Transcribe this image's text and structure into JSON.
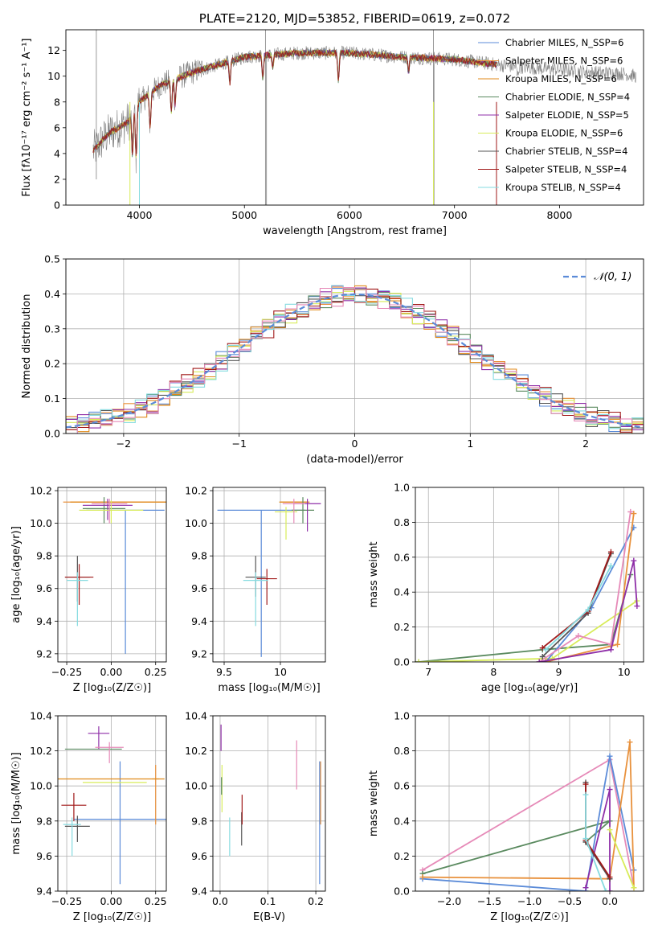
{
  "colors": {
    "chabrier_miles": "#5b8bd8",
    "salpeter_miles": "#e8913c",
    "kroupa_miles": "#e08a1a",
    "chabrier_elodie": "#5a8a5f",
    "salpeter_elodie": "#8f2fa8",
    "kroupa_elodie": "#d8ec5a",
    "chabrier_stelib": "#555555",
    "salpeter_stelib": "#a01818",
    "kroupa_stelib": "#86dbe0",
    "pink": "#e68ab8",
    "normal": "#5b8bd8",
    "data": "#808080"
  },
  "chart_data": [
    {
      "id": "spectrum",
      "type": "line",
      "title": "PLATE=2120, MJD=53852, FIBERID=0619, z=0.072",
      "xlabel": "wavelength [Angstrom, rest frame]",
      "ylabel": "Flux [fλ10⁻¹⁷ erg cm⁻² s⁻¹ A⁻¹]",
      "xlim": [
        3300,
        8800
      ],
      "ylim": [
        0,
        13.6
      ],
      "xticks": [
        4000,
        5000,
        6000,
        7000,
        8000
      ],
      "yticks": [
        0,
        2,
        4,
        6,
        8,
        10,
        12
      ],
      "grid": false,
      "legend_position": "right",
      "legend": [
        {
          "label": "Chabrier MILES, N_SSP=6",
          "color": "#5b8bd8"
        },
        {
          "label": "Salpeter MILES, N_SSP=6",
          "color": "#e8913c"
        },
        {
          "label": "Kroupa MILES, N_SSP=6",
          "color": "#e08a1a"
        },
        {
          "label": "Chabrier ELODIE, N_SSP=4",
          "color": "#5a8a5f"
        },
        {
          "label": "Salpeter ELODIE, N_SSP=5",
          "color": "#8f2fa8"
        },
        {
          "label": "Kroupa ELODIE, N_SSP=6",
          "color": "#d8ec5a"
        },
        {
          "label": "Chabrier STELIB, N_SSP=4",
          "color": "#555555"
        },
        {
          "label": "Salpeter STELIB, N_SSP=4",
          "color": "#a01818"
        },
        {
          "label": "Kroupa STELIB, N_SSP=4",
          "color": "#86dbe0"
        }
      ],
      "continuum": [
        [
          3560,
          4.2
        ],
        [
          3700,
          5.5
        ],
        [
          3900,
          6.5
        ],
        [
          4000,
          8.0
        ],
        [
          4200,
          9.3
        ],
        [
          4500,
          10.3
        ],
        [
          4800,
          11.0
        ],
        [
          5000,
          11.5
        ],
        [
          5500,
          11.8
        ],
        [
          6000,
          11.8
        ],
        [
          6500,
          11.5
        ],
        [
          7000,
          11.3
        ],
        [
          7500,
          10.8
        ],
        [
          8000,
          10.5
        ],
        [
          8300,
          10.3
        ],
        [
          8600,
          10.2
        ],
        [
          8730,
          10.0
        ]
      ],
      "model_range": [
        3560,
        7400
      ],
      "data_range": [
        3560,
        8730
      ]
    },
    {
      "id": "residuals",
      "type": "histogram",
      "xlabel": "(data-model)/error",
      "ylabel": "Normed distribution",
      "xlim": [
        -2.5,
        2.5
      ],
      "ylim": [
        0,
        0.5
      ],
      "xticks": [
        -2,
        -1,
        0,
        1,
        2
      ],
      "yticks": [
        0.0,
        0.1,
        0.2,
        0.3,
        0.4,
        0.5
      ],
      "grid": true,
      "bin_width": 0.1,
      "legend": [
        {
          "label": "𝒩(0, 1)",
          "color": "#5b8bd8",
          "style": "dashed"
        }
      ],
      "legend_position": "top-right"
    },
    {
      "id": "age_vs_z",
      "type": "errorbar",
      "xlabel": "Z [log₁₀(Z/Z☉)]",
      "ylabel": "age  [log₁₀(age/yr)]",
      "xlim": [
        -0.3,
        0.31
      ],
      "ylim": [
        9.15,
        10.22
      ],
      "xticks": [
        -0.25,
        0.0,
        0.25
      ],
      "xticklabels": [
        "−0.25",
        "0.00",
        "0.25"
      ],
      "yticks": [
        9.2,
        9.4,
        9.6,
        9.8,
        10.0,
        10.2
      ],
      "grid": true,
      "points": [
        {
          "color": "#5b8bd8",
          "x": 0.08,
          "y": 10.08,
          "xerr": 0.22,
          "ylo": 9.2,
          "yhi": 10.08
        },
        {
          "color": "#e8913c",
          "x": 0.06,
          "y": 10.13,
          "xerr": 0.33,
          "ylo": 10.13,
          "yhi": 10.13
        },
        {
          "color": "#e08a1a",
          "x": 0.07,
          "y": 10.13,
          "xerr": 0.3,
          "ylo": 10.13,
          "yhi": 10.13
        },
        {
          "color": "#5a8a5f",
          "x": -0.04,
          "y": 10.09,
          "xerr": 0.12,
          "ylo": 10.0,
          "yhi": 10.16
        },
        {
          "color": "#8f2fa8",
          "x": -0.02,
          "y": 10.11,
          "xerr": 0.14,
          "ylo": 10.02,
          "yhi": 10.15
        },
        {
          "color": "#d8ec5a",
          "x": 0.0,
          "y": 10.08,
          "xerr": 0.18,
          "ylo": 10.0,
          "yhi": 10.14
        },
        {
          "color": "#555555",
          "x": -0.19,
          "y": 9.67,
          "xerr": 0.07,
          "ylo": 9.52,
          "yhi": 9.8
        },
        {
          "color": "#a01818",
          "x": -0.18,
          "y": 9.67,
          "xerr": 0.08,
          "ylo": 9.5,
          "yhi": 9.75
        },
        {
          "color": "#86dbe0",
          "x": -0.19,
          "y": 9.65,
          "xerr": 0.06,
          "ylo": 9.37,
          "yhi": 9.7
        },
        {
          "color": "#e68ab8",
          "x": -0.01,
          "y": 10.12,
          "xerr": 0.1,
          "ylo": 10.0,
          "yhi": 10.15
        }
      ]
    },
    {
      "id": "age_vs_mass",
      "type": "errorbar",
      "xlabel": "mass [log₁₀(M/M☉)]",
      "xlim": [
        9.4,
        10.4
      ],
      "ylim": [
        9.15,
        10.22
      ],
      "xticks": [
        9.5,
        10.0
      ],
      "yticks": [
        9.2,
        9.4,
        9.6,
        9.8,
        10.0,
        10.2
      ],
      "grid": true,
      "points": [
        {
          "color": "#5b8bd8",
          "x": 9.83,
          "y": 10.08,
          "xerr": 0.39,
          "ylo": 9.18,
          "yhi": 10.08
        },
        {
          "color": "#e8913c",
          "x": 10.13,
          "y": 10.13,
          "xerr": 0.13,
          "ylo": 10.13,
          "yhi": 10.13
        },
        {
          "color": "#e08a1a",
          "x": 10.12,
          "y": 10.13,
          "xerr": 0.13,
          "ylo": 10.13,
          "yhi": 10.13
        },
        {
          "color": "#5a8a5f",
          "x": 10.2,
          "y": 10.08,
          "xerr": 0.1,
          "ylo": 10.0,
          "yhi": 10.16
        },
        {
          "color": "#8f2fa8",
          "x": 10.24,
          "y": 10.12,
          "xerr": 0.12,
          "ylo": 9.95,
          "yhi": 10.15
        },
        {
          "color": "#d8ec5a",
          "x": 10.05,
          "y": 10.07,
          "xerr": 0.1,
          "ylo": 9.9,
          "yhi": 10.1
        },
        {
          "color": "#555555",
          "x": 9.78,
          "y": 9.67,
          "xerr": 0.09,
          "ylo": 9.55,
          "yhi": 9.8
        },
        {
          "color": "#a01818",
          "x": 9.88,
          "y": 9.66,
          "xerr": 0.09,
          "ylo": 9.5,
          "yhi": 9.72
        },
        {
          "color": "#86dbe0",
          "x": 9.78,
          "y": 9.65,
          "xerr": 0.11,
          "ylo": 9.37,
          "yhi": 9.7
        },
        {
          "color": "#e68ab8",
          "x": 10.12,
          "y": 10.12,
          "xerr": 0.1,
          "ylo": 10.0,
          "yhi": 10.15
        }
      ]
    },
    {
      "id": "mw_vs_age",
      "type": "line",
      "xlabel": "age  [log₁₀(age/yr)]",
      "ylabel": "mass weight",
      "xlim": [
        6.8,
        10.3
      ],
      "ylim": [
        0,
        1.0
      ],
      "xticks": [
        7,
        8,
        9,
        10
      ],
      "yticks": [
        0.0,
        0.2,
        0.4,
        0.6,
        0.8,
        1.0
      ],
      "grid": true,
      "series": [
        {
          "color": "#5a8a5f",
          "points": [
            [
              6.85,
              0.0
            ],
            [
              8.75,
              0.07
            ],
            [
              9.8,
              0.1
            ],
            [
              10.1,
              0.5
            ]
          ]
        },
        {
          "color": "#d8ec5a",
          "points": [
            [
              6.85,
              0.0
            ],
            [
              8.9,
              0.02
            ],
            [
              10.2,
              0.35
            ]
          ]
        },
        {
          "color": "#5b8bd8",
          "points": [
            [
              8.8,
              0.0
            ],
            [
              9.5,
              0.31
            ],
            [
              10.15,
              0.77
            ]
          ]
        },
        {
          "color": "#e68ab8",
          "points": [
            [
              8.7,
              0.0
            ],
            [
              9.3,
              0.15
            ],
            [
              9.8,
              0.1
            ],
            [
              10.1,
              0.86
            ]
          ]
        },
        {
          "color": "#e8913c",
          "points": [
            [
              8.8,
              0.0
            ],
            [
              9.9,
              0.1
            ],
            [
              10.15,
              0.85
            ]
          ]
        },
        {
          "color": "#8f2fa8",
          "points": [
            [
              8.7,
              0.0
            ],
            [
              9.8,
              0.07
            ],
            [
              10.15,
              0.58
            ],
            [
              10.2,
              0.32
            ]
          ]
        },
        {
          "color": "#555555",
          "points": [
            [
              8.75,
              0.03
            ],
            [
              9.45,
              0.28
            ],
            [
              9.8,
              0.62
            ]
          ]
        },
        {
          "color": "#a01818",
          "points": [
            [
              8.75,
              0.08
            ],
            [
              9.45,
              0.29
            ],
            [
              9.8,
              0.63
            ]
          ]
        },
        {
          "color": "#86dbe0",
          "points": [
            [
              8.8,
              0.07
            ],
            [
              9.45,
              0.3
            ],
            [
              9.8,
              0.55
            ]
          ]
        }
      ]
    },
    {
      "id": "mass_vs_z",
      "type": "errorbar",
      "xlabel": "Z [log₁₀(Z/Z☉)]",
      "ylabel": "mass [log₁₀(M/M☉)]",
      "xlim": [
        -0.3,
        0.31
      ],
      "ylim": [
        9.4,
        10.4
      ],
      "xticks": [
        -0.25,
        0.0,
        0.25
      ],
      "xticklabels": [
        "−0.25",
        "0.00",
        "0.25"
      ],
      "yticks": [
        9.4,
        9.6,
        9.8,
        10.0,
        10.2,
        10.4
      ],
      "grid": true,
      "points": [
        {
          "color": "#5b8bd8",
          "x": 0.05,
          "y": 9.81,
          "xerr": 0.26,
          "ylo": 9.44,
          "yhi": 10.14
        },
        {
          "color": "#e8913c",
          "x": 0.25,
          "y": 10.04,
          "xerr": 0.02,
          "ylo": 9.78,
          "yhi": 10.12
        },
        {
          "color": "#e08a1a",
          "x": 0.0,
          "y": 10.04,
          "xerr": 0.3,
          "ylo": 10.04,
          "yhi": 10.04
        },
        {
          "color": "#5a8a5f",
          "x": -0.1,
          "y": 10.21,
          "xerr": 0.16,
          "ylo": 10.21,
          "yhi": 10.21
        },
        {
          "color": "#8f2fa8",
          "x": -0.07,
          "y": 10.3,
          "xerr": 0.06,
          "ylo": 10.21,
          "yhi": 10.34
        },
        {
          "color": "#d8ec5a",
          "x": 0.02,
          "y": 10.02,
          "xerr": 0.18,
          "ylo": 10.02,
          "yhi": 10.02
        },
        {
          "color": "#555555",
          "x": -0.19,
          "y": 9.77,
          "xerr": 0.07,
          "ylo": 9.68,
          "yhi": 9.83
        },
        {
          "color": "#a01818",
          "x": -0.21,
          "y": 9.89,
          "xerr": 0.07,
          "ylo": 9.8,
          "yhi": 9.96
        },
        {
          "color": "#86dbe0",
          "x": -0.22,
          "y": 9.78,
          "xerr": 0.05,
          "ylo": 9.6,
          "yhi": 9.82
        },
        {
          "color": "#e68ab8",
          "x": -0.01,
          "y": 10.22,
          "xerr": 0.08,
          "ylo": 10.13,
          "yhi": 10.25
        }
      ]
    },
    {
      "id": "mass_vs_ebv",
      "type": "errorbar",
      "xlabel": "E(B-V)",
      "xlim": [
        -0.015,
        0.22
      ],
      "ylim": [
        9.4,
        10.4
      ],
      "xticks": [
        0.0,
        0.1,
        0.2
      ],
      "xticklabels": [
        "0.0",
        "0.1",
        "0.2"
      ],
      "yticks": [
        9.4,
        9.6,
        9.8,
        10.0,
        10.2,
        10.4
      ],
      "grid": true,
      "points": [
        {
          "color": "#5b8bd8",
          "x": 0.208,
          "ylo": 9.44,
          "yhi": 10.14
        },
        {
          "color": "#e8913c",
          "x": 0.21,
          "ylo": 9.78,
          "yhi": 10.14
        },
        {
          "color": "#8f2fa8",
          "x": 0.002,
          "ylo": 10.2,
          "yhi": 10.35
        },
        {
          "color": "#d8ec5a",
          "x": 0.004,
          "ylo": 9.85,
          "yhi": 10.12
        },
        {
          "color": "#5a8a5f",
          "x": 0.003,
          "ylo": 9.95,
          "yhi": 10.05
        },
        {
          "color": "#555555",
          "x": 0.045,
          "ylo": 9.66,
          "yhi": 9.85
        },
        {
          "color": "#a01818",
          "x": 0.046,
          "ylo": 9.78,
          "yhi": 9.95
        },
        {
          "color": "#86dbe0",
          "x": 0.02,
          "ylo": 9.6,
          "yhi": 9.82
        },
        {
          "color": "#e68ab8",
          "x": 0.16,
          "ylo": 9.98,
          "yhi": 10.26
        }
      ]
    },
    {
      "id": "mw_vs_z",
      "type": "line",
      "xlabel": "Z [log₁₀(Z/Z☉)]",
      "ylabel": "mass weight",
      "xlim": [
        -2.42,
        0.42
      ],
      "ylim": [
        0,
        1.0
      ],
      "xticks": [
        -2.0,
        -1.5,
        -1.0,
        -0.5,
        0.0
      ],
      "xticklabels": [
        "−2.0",
        "−1.5",
        "−1.0",
        "−0.5",
        "0.0"
      ],
      "yticks": [
        0.0,
        0.2,
        0.4,
        0.6,
        0.8,
        1.0
      ],
      "grid": true,
      "series": [
        {
          "color": "#e68ab8",
          "points": [
            [
              -2.33,
              0.12
            ],
            [
              0.0,
              0.75
            ],
            [
              0.3,
              0.02
            ]
          ]
        },
        {
          "color": "#5a8a5f",
          "points": [
            [
              -2.33,
              0.1
            ],
            [
              0.0,
              0.4
            ],
            [
              -0.3,
              0.28
            ]
          ]
        },
        {
          "color": "#5b8bd8",
          "points": [
            [
              -2.33,
              0.07
            ],
            [
              -0.3,
              0.0
            ],
            [
              0.0,
              0.77
            ],
            [
              0.3,
              0.12
            ]
          ]
        },
        {
          "color": "#e8913c",
          "points": [
            [
              -2.33,
              0.08
            ],
            [
              0.0,
              0.07
            ],
            [
              0.25,
              0.85
            ],
            [
              0.3,
              0.02
            ]
          ]
        },
        {
          "color": "#8f2fa8",
          "points": [
            [
              -0.3,
              0.02
            ],
            [
              0.0,
              0.58
            ],
            [
              0.0,
              0.0
            ]
          ]
        },
        {
          "color": "#d8ec5a",
          "points": [
            [
              0.0,
              0.35
            ],
            [
              0.3,
              0.02
            ]
          ]
        },
        {
          "color": "#555555",
          "points": [
            [
              -0.3,
              0.62
            ],
            [
              -0.3,
              0.28
            ],
            [
              0.0,
              0.07
            ]
          ]
        },
        {
          "color": "#a01818",
          "points": [
            [
              -0.3,
              0.61
            ],
            [
              -0.3,
              0.29
            ],
            [
              0.0,
              0.08
            ]
          ]
        },
        {
          "color": "#86dbe0",
          "points": [
            [
              -0.3,
              0.55
            ],
            [
              -0.3,
              0.3
            ],
            [
              -0.05,
              0.0
            ]
          ]
        }
      ]
    }
  ]
}
